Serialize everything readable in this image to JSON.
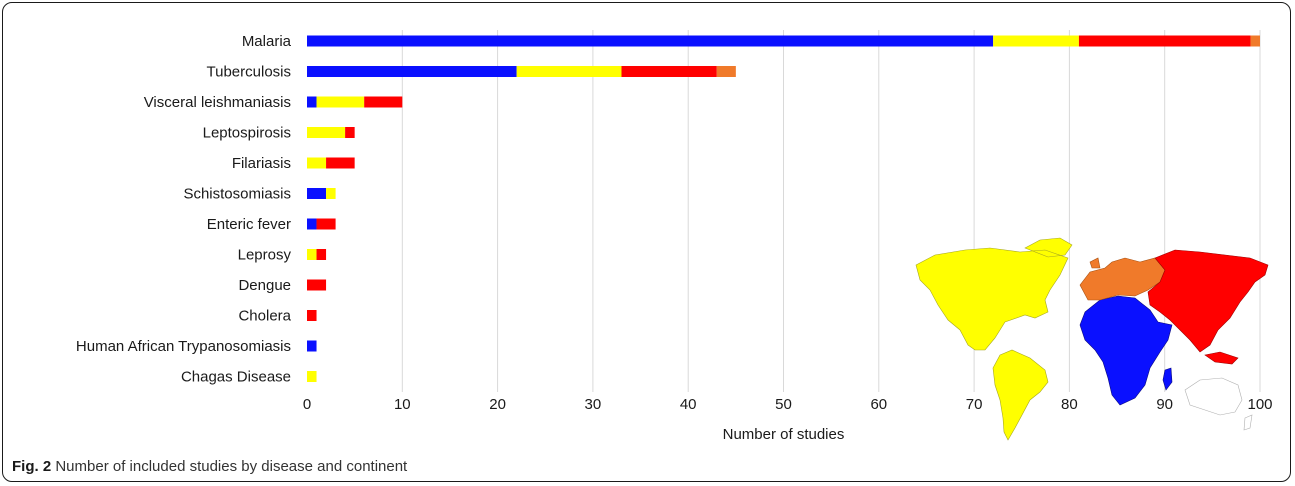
{
  "caption": {
    "label": "Fig. 2",
    "text": "Number of included studies by disease and continent"
  },
  "colors": {
    "blue": "#0a10ff",
    "yellow": "#ffff00",
    "red": "#ff0000",
    "orange": "#f07a2a",
    "grid": "#d9d9d9",
    "map_gray": "#d0d0d0"
  },
  "map": {
    "regions": [
      "Americas",
      "Africa",
      "Europe",
      "Asia",
      "Oceania"
    ],
    "region_colors": [
      "yellow",
      "blue",
      "orange",
      "red",
      "map_gray"
    ]
  },
  "chart_data": {
    "type": "bar",
    "orientation": "horizontal",
    "stacked": true,
    "categories": [
      "Malaria",
      "Tuberculosis",
      "Visceral leishmaniasis",
      "Leptospirosis",
      "Filariasis",
      "Schistosomiasis",
      "Enteric fever",
      "Leprosy",
      "Dengue",
      "Cholera",
      "Human African Trypanosomiasis",
      "Chagas Disease"
    ],
    "series": [
      {
        "color": "#0a10ff",
        "values": [
          72,
          22,
          1,
          0,
          0,
          2,
          1,
          0,
          0,
          0,
          1,
          0
        ]
      },
      {
        "color": "#ffff00",
        "values": [
          9,
          11,
          5,
          4,
          2,
          1,
          0,
          1,
          0,
          0,
          0,
          1
        ]
      },
      {
        "color": "#ff0000",
        "values": [
          18,
          10,
          4,
          1,
          3,
          0,
          2,
          1,
          2,
          1,
          0,
          0
        ]
      },
      {
        "color": "#f07a2a",
        "values": [
          1,
          2,
          0,
          0,
          0,
          0,
          0,
          0,
          0,
          0,
          0,
          0
        ]
      }
    ],
    "xlabel": "Number of studies",
    "xlim": [
      0,
      100
    ],
    "xticks": [
      "0",
      "10",
      "20",
      "30",
      "40",
      "50",
      "60",
      "70",
      "80",
      "90",
      "100"
    ],
    "grid": "vertical",
    "legend": "world map inset, bottom-right"
  }
}
